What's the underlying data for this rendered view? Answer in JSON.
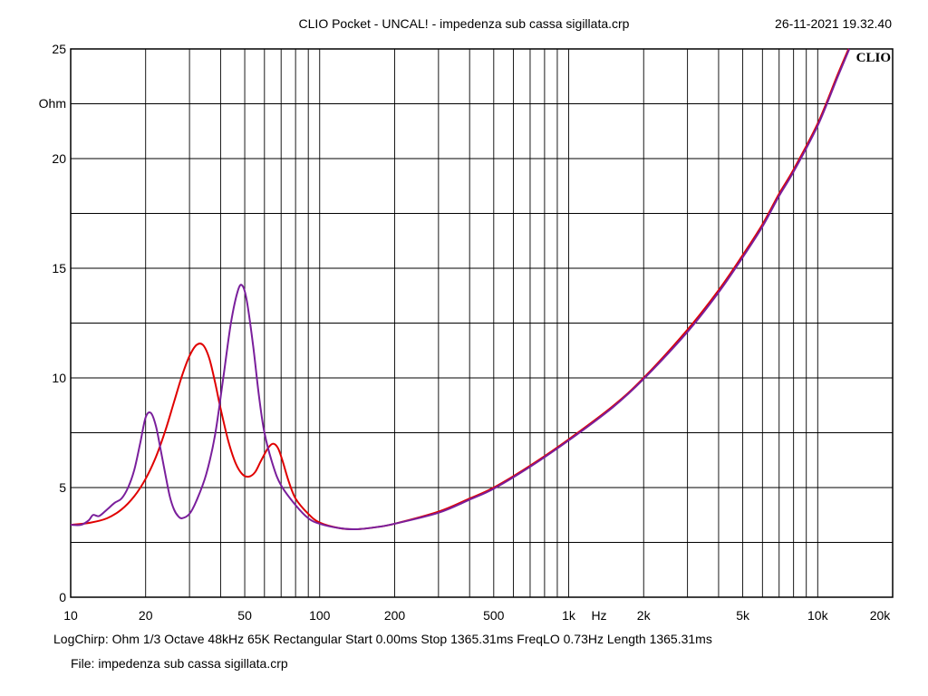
{
  "header": {
    "title": "CLIO Pocket - UNCAL! - impedenza sub cassa sigillata.crp",
    "datetime": "26-11-2021 19.32.40"
  },
  "logo": {
    "text": "CLIO"
  },
  "footer": {
    "info": "LogChirp:  Ohm   1/3 Octave   48kHz   65K   Rectangular   Start 0.00ms    Stop 1365.31ms    FreqLO 0.73Hz    Length 1365.31ms",
    "file": "File: impedenza sub cassa sigillata.crp"
  },
  "chart_data": {
    "type": "line",
    "xscale": "log",
    "xlim": [
      10,
      20000
    ],
    "ylim": [
      0,
      25
    ],
    "ylabel": "Ohm",
    "xunit_label": "Hz",
    "grid": true,
    "x_ticks": [
      {
        "value": 10,
        "label": "10"
      },
      {
        "value": 20,
        "label": "20"
      },
      {
        "value": 50,
        "label": "50"
      },
      {
        "value": 100,
        "label": "100"
      },
      {
        "value": 200,
        "label": "200"
      },
      {
        "value": 500,
        "label": "500"
      },
      {
        "value": 1000,
        "label": "1k"
      },
      {
        "value": 2000,
        "label": "2k"
      },
      {
        "value": 5000,
        "label": "5k"
      },
      {
        "value": 10000,
        "label": "10k"
      },
      {
        "value": 20000,
        "label": "20k"
      }
    ],
    "y_ticks": [
      {
        "value": 0,
        "label": "0"
      },
      {
        "value": 5,
        "label": "5"
      },
      {
        "value": 10,
        "label": "10"
      },
      {
        "value": 15,
        "label": "15"
      },
      {
        "value": 20,
        "label": "20"
      },
      {
        "value": 25,
        "label": "25"
      }
    ],
    "series": [
      {
        "color": "#e00000",
        "points": [
          [
            10,
            3.3
          ],
          [
            12,
            3.4
          ],
          [
            14,
            3.6
          ],
          [
            16,
            4.0
          ],
          [
            18,
            4.6
          ],
          [
            20,
            5.4
          ],
          [
            22,
            6.4
          ],
          [
            24,
            7.6
          ],
          [
            26,
            8.9
          ],
          [
            28,
            10.1
          ],
          [
            30,
            11.0
          ],
          [
            32,
            11.5
          ],
          [
            34,
            11.5
          ],
          [
            36,
            10.9
          ],
          [
            38,
            9.8
          ],
          [
            40,
            8.6
          ],
          [
            43,
            7.1
          ],
          [
            46,
            6.1
          ],
          [
            49,
            5.6
          ],
          [
            52,
            5.5
          ],
          [
            55,
            5.7
          ],
          [
            58,
            6.2
          ],
          [
            62,
            6.8
          ],
          [
            65,
            7.0
          ],
          [
            68,
            6.8
          ],
          [
            71,
            6.2
          ],
          [
            75,
            5.3
          ],
          [
            80,
            4.5
          ],
          [
            90,
            3.8
          ],
          [
            100,
            3.4
          ],
          [
            120,
            3.15
          ],
          [
            140,
            3.1
          ],
          [
            170,
            3.2
          ],
          [
            200,
            3.35
          ],
          [
            300,
            3.9
          ],
          [
            400,
            4.5
          ],
          [
            500,
            5.0
          ],
          [
            700,
            6.0
          ],
          [
            1000,
            7.2
          ],
          [
            1500,
            8.7
          ],
          [
            2000,
            10.0
          ],
          [
            3000,
            12.2
          ],
          [
            4000,
            14.0
          ],
          [
            5000,
            15.6
          ],
          [
            6000,
            17.0
          ],
          [
            7000,
            18.4
          ],
          [
            8000,
            19.5
          ],
          [
            10000,
            21.6
          ],
          [
            12000,
            23.8
          ],
          [
            13300,
            25.0
          ]
        ]
      },
      {
        "color": "#7a1f9c",
        "points": [
          [
            10,
            3.3
          ],
          [
            11,
            3.3
          ],
          [
            11.8,
            3.5
          ],
          [
            12.3,
            3.75
          ],
          [
            13,
            3.7
          ],
          [
            14,
            4.0
          ],
          [
            15,
            4.3
          ],
          [
            16,
            4.5
          ],
          [
            17,
            5.0
          ],
          [
            18,
            5.8
          ],
          [
            19,
            7.0
          ],
          [
            20,
            8.2
          ],
          [
            21,
            8.4
          ],
          [
            22,
            7.8
          ],
          [
            23,
            6.7
          ],
          [
            24,
            5.6
          ],
          [
            25,
            4.6
          ],
          [
            26,
            4.0
          ],
          [
            27,
            3.7
          ],
          [
            28,
            3.6
          ],
          [
            30,
            3.8
          ],
          [
            32,
            4.4
          ],
          [
            35,
            5.6
          ],
          [
            38,
            7.4
          ],
          [
            41,
            10.0
          ],
          [
            44,
            12.5
          ],
          [
            47,
            14.0
          ],
          [
            49,
            14.2
          ],
          [
            51,
            13.5
          ],
          [
            54,
            11.5
          ],
          [
            57,
            9.2
          ],
          [
            60,
            7.5
          ],
          [
            65,
            6.0
          ],
          [
            70,
            5.1
          ],
          [
            80,
            4.2
          ],
          [
            90,
            3.6
          ],
          [
            100,
            3.35
          ],
          [
            120,
            3.15
          ],
          [
            140,
            3.1
          ],
          [
            170,
            3.2
          ],
          [
            200,
            3.35
          ],
          [
            300,
            3.85
          ],
          [
            400,
            4.45
          ],
          [
            500,
            4.95
          ],
          [
            700,
            5.95
          ],
          [
            1000,
            7.15
          ],
          [
            1500,
            8.65
          ],
          [
            2000,
            9.95
          ],
          [
            3000,
            12.1
          ],
          [
            4000,
            13.9
          ],
          [
            5000,
            15.5
          ],
          [
            6000,
            16.9
          ],
          [
            7000,
            18.3
          ],
          [
            8000,
            19.4
          ],
          [
            10000,
            21.5
          ],
          [
            12000,
            23.7
          ],
          [
            13400,
            25.0
          ]
        ]
      }
    ]
  }
}
